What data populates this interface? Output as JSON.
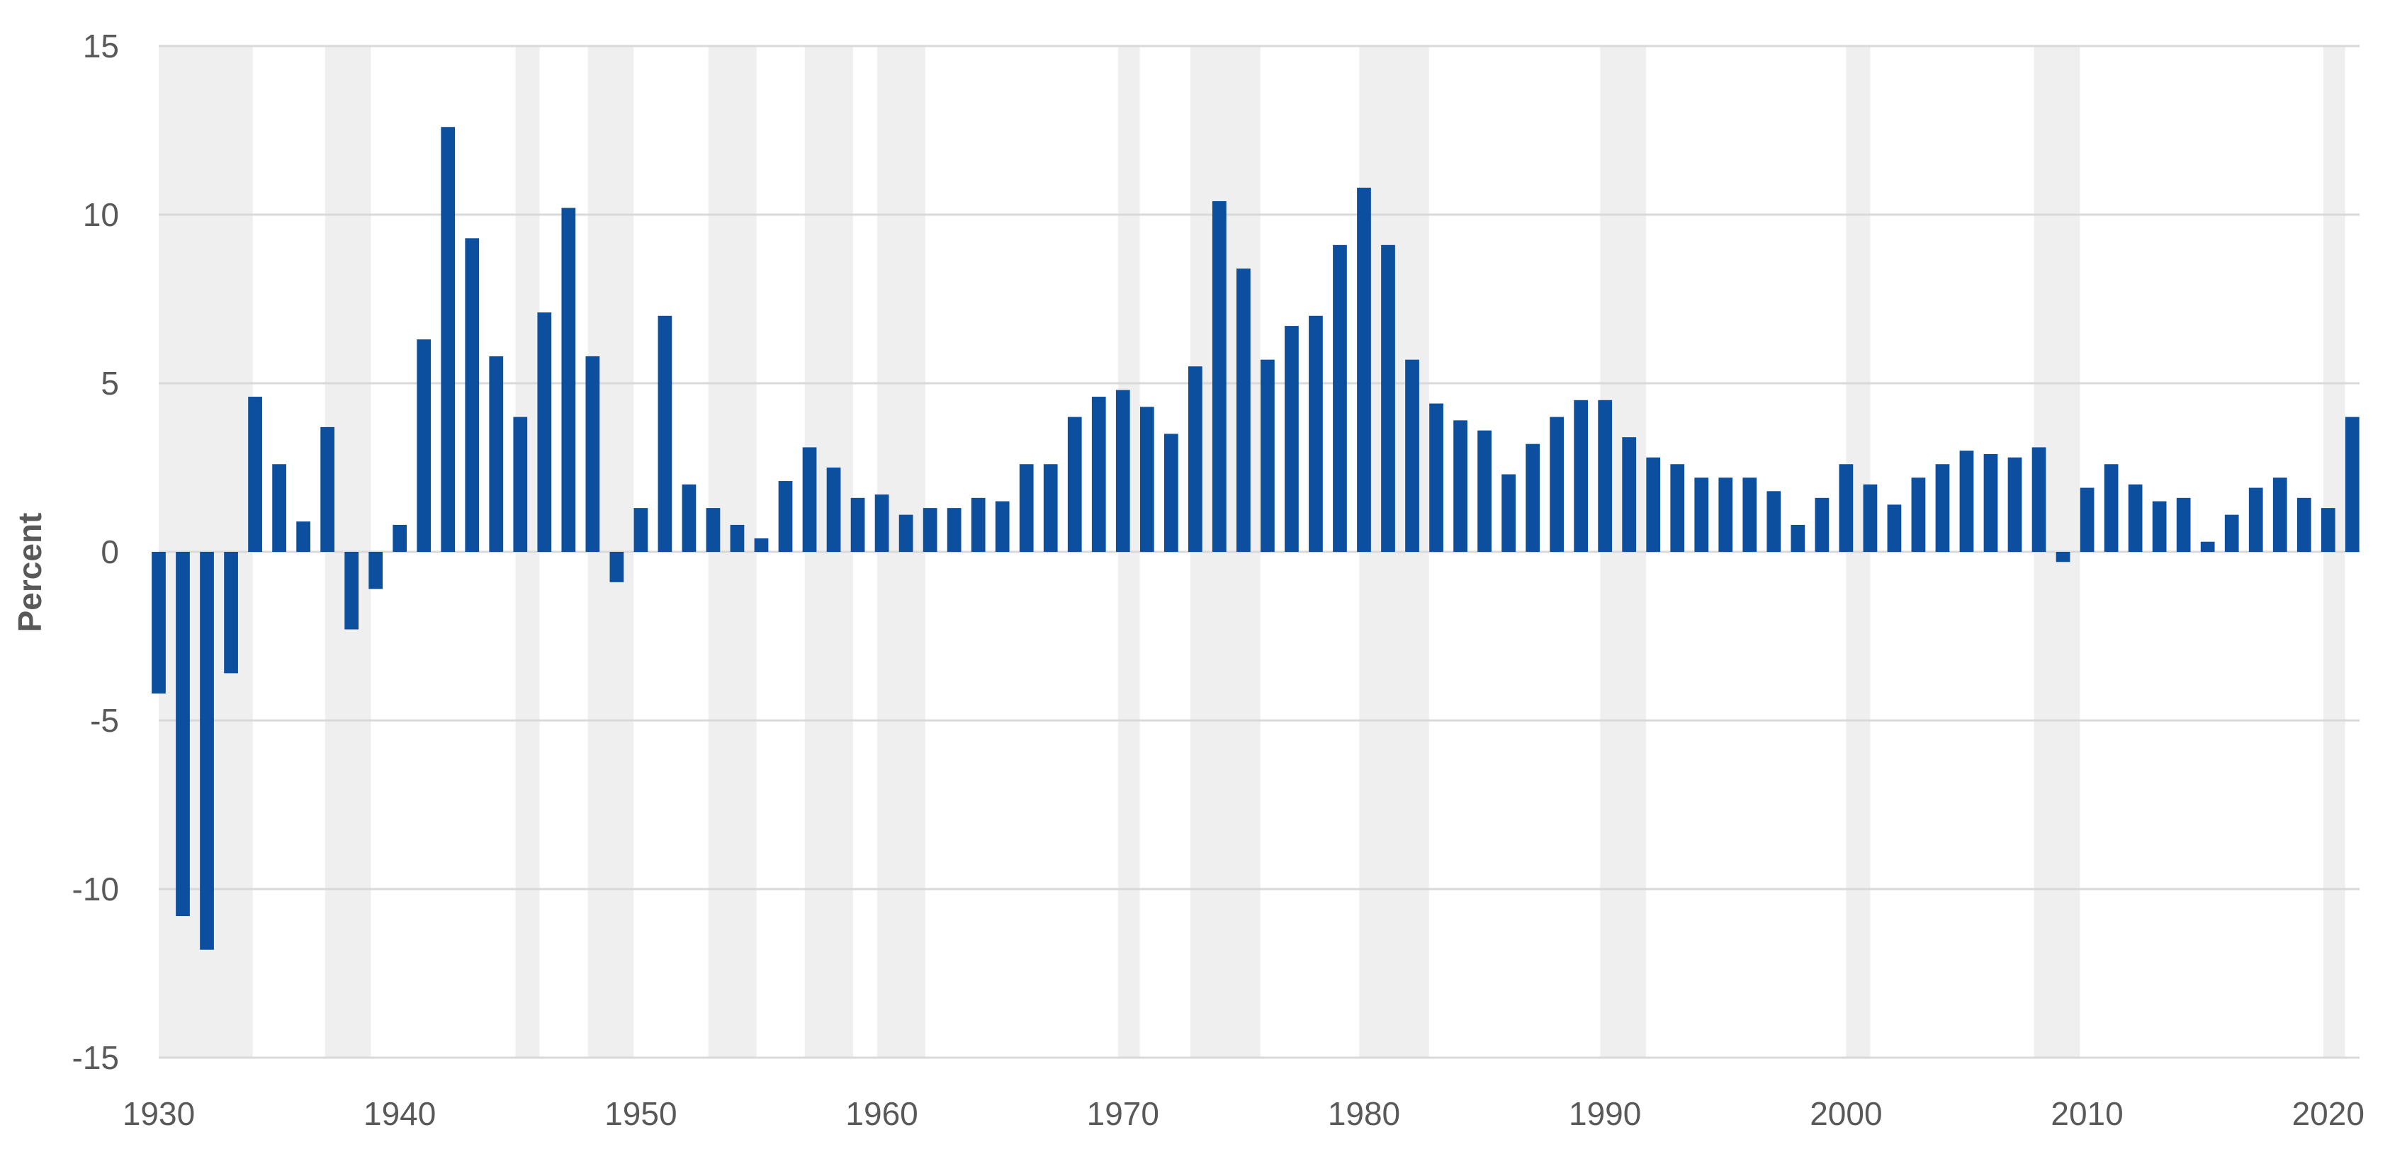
{
  "chart_data": {
    "type": "bar",
    "title": "",
    "xlabel": "",
    "ylabel": "Percent",
    "ylim": [
      -15,
      15
    ],
    "xlim": [
      1930,
      2021.3
    ],
    "y_ticks": [
      15,
      10,
      5,
      0,
      -5,
      -10,
      -15
    ],
    "y_tick_labels": [
      "15",
      "10",
      "5",
      "0",
      "-5",
      "-10",
      "-15"
    ],
    "x_ticks": [
      1930,
      1940,
      1950,
      1960,
      1970,
      1980,
      1990,
      2000,
      2010,
      2020
    ],
    "x_tick_labels": [
      "1930",
      "1940",
      "1950",
      "1960",
      "1970",
      "1980",
      "1990",
      "2000",
      "2010",
      "2020"
    ],
    "grid": true,
    "legend": "none",
    "bar_color": "#0B4F9E",
    "shade_color": "#EFEFEF",
    "grid_color": "#D9D9D9",
    "recession_periods": [
      [
        1930.0,
        1933.9
      ],
      [
        1936.9,
        1938.8
      ],
      [
        1944.8,
        1945.8
      ],
      [
        1947.8,
        1949.7
      ],
      [
        1952.8,
        1954.8
      ],
      [
        1956.8,
        1958.8
      ],
      [
        1959.8,
        1961.8
      ],
      [
        1969.8,
        1970.7
      ],
      [
        1972.8,
        1975.7
      ],
      [
        1979.8,
        1982.7
      ],
      [
        1989.8,
        1991.7
      ],
      [
        2000.0,
        2001.0
      ],
      [
        2007.8,
        2009.7
      ],
      [
        2019.8,
        2020.7
      ]
    ],
    "x": [
      1930,
      1931,
      1932,
      1933,
      1934,
      1935,
      1936,
      1937,
      1938,
      1939,
      1940,
      1941,
      1942,
      1943,
      1944,
      1945,
      1946,
      1947,
      1948,
      1949,
      1950,
      1951,
      1952,
      1953,
      1954,
      1955,
      1956,
      1957,
      1958,
      1959,
      1960,
      1961,
      1962,
      1963,
      1964,
      1965,
      1966,
      1967,
      1968,
      1969,
      1970,
      1971,
      1972,
      1973,
      1974,
      1975,
      1976,
      1977,
      1978,
      1979,
      1980,
      1981,
      1982,
      1983,
      1984,
      1985,
      1986,
      1987,
      1988,
      1989,
      1990,
      1991,
      1992,
      1993,
      1994,
      1995,
      1996,
      1997,
      1998,
      1999,
      2000,
      2001,
      2002,
      2003,
      2004,
      2005,
      2006,
      2007,
      2008,
      2009,
      2010,
      2011,
      2012,
      2013,
      2014,
      2015,
      2016,
      2017,
      2018,
      2019,
      2020,
      2021
    ],
    "values": [
      -4.2,
      -10.8,
      -11.8,
      -3.6,
      4.6,
      2.6,
      0.9,
      3.7,
      -2.3,
      -1.1,
      0.8,
      6.3,
      12.6,
      9.3,
      5.8,
      4.0,
      7.1,
      10.2,
      5.8,
      -0.9,
      1.3,
      7.0,
      2.0,
      1.3,
      0.8,
      0.4,
      2.1,
      3.1,
      2.5,
      1.6,
      1.7,
      1.1,
      1.3,
      1.3,
      1.6,
      1.5,
      2.6,
      2.6,
      4.0,
      4.6,
      4.8,
      4.3,
      3.5,
      5.5,
      10.4,
      8.4,
      5.7,
      6.7,
      7.0,
      9.1,
      10.8,
      9.1,
      5.7,
      4.4,
      3.9,
      3.6,
      2.3,
      3.2,
      4.0,
      4.5,
      4.5,
      3.4,
      2.8,
      2.6,
      2.2,
      2.2,
      2.2,
      1.8,
      0.8,
      1.6,
      2.6,
      2.0,
      1.4,
      2.2,
      2.6,
      3.0,
      2.9,
      2.8,
      3.1,
      -0.3,
      1.9,
      2.6,
      2.0,
      1.5,
      1.6,
      0.3,
      1.1,
      1.9,
      2.2,
      1.6,
      1.3,
      4.0
    ]
  }
}
